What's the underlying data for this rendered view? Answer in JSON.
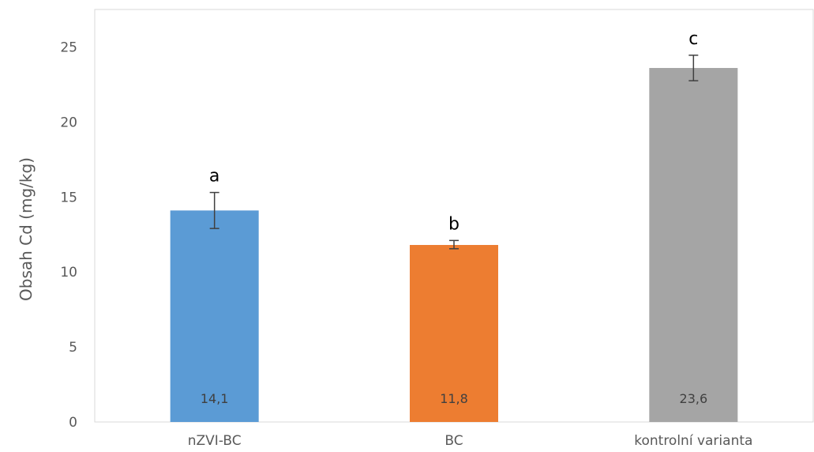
{
  "chart_data": {
    "type": "bar",
    "categories": [
      "nZVI-BC",
      "BC",
      "kontrolní varianta"
    ],
    "values": [
      14.1,
      11.8,
      23.6
    ],
    "data_labels": [
      "14,1",
      "11,8",
      "23,6"
    ],
    "error_bars": [
      {
        "low": 12.9,
        "high": 15.3
      },
      {
        "low": 11.55,
        "high": 12.1
      },
      {
        "low": 22.75,
        "high": 24.45
      }
    ],
    "significance_letters": [
      "a",
      "b",
      "c"
    ],
    "colors": [
      "#5b9bd5",
      "#ed7d31",
      "#a5a5a5"
    ],
    "error_bar_color": "#404040",
    "ylabel": "Obsah Cd (mg/kg)",
    "xlabel": "",
    "title": "",
    "ylim": [
      0,
      27.5
    ],
    "yticks": [
      0,
      5,
      10,
      15,
      20,
      25
    ],
    "ytick_labels": [
      "0",
      "5",
      "10",
      "15",
      "20",
      "25"
    ],
    "grid": false,
    "legend": "none"
  }
}
